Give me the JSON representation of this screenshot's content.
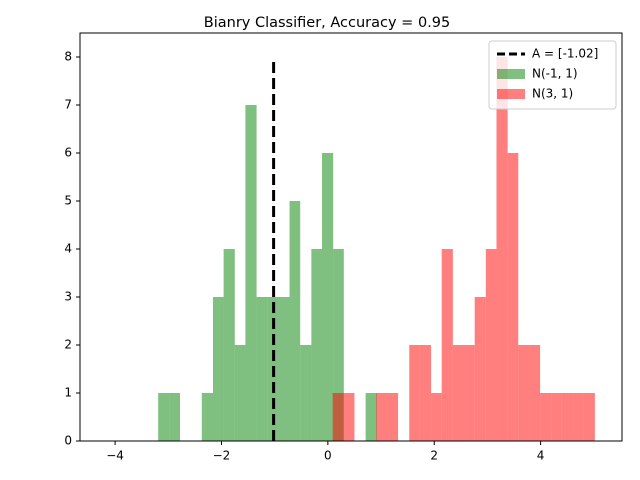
{
  "chart_data": {
    "type": "histogram",
    "title": "Bianry Classifier, Accuracy = 0.95",
    "series": [
      {
        "name": "N(-1, 1)",
        "color": "green",
        "bins": [
          -3.19,
          -2.98,
          -2.78,
          -2.57,
          -2.37,
          -2.16,
          -1.96,
          -1.75,
          -1.55,
          -1.34,
          -1.14,
          -0.93,
          -0.72,
          -0.52,
          -0.31,
          -0.11,
          0.1,
          0.3,
          0.51,
          0.71,
          0.92
        ],
        "values": [
          1,
          1,
          0,
          0,
          1,
          3,
          4,
          2,
          7,
          3,
          3,
          3,
          5,
          2,
          4,
          6,
          4,
          0,
          0,
          1
        ]
      },
      {
        "name": "N(3, 1)",
        "color": "red",
        "bins": [
          0.09,
          0.3,
          0.5,
          0.71,
          0.91,
          1.12,
          1.32,
          1.53,
          1.73,
          1.94,
          2.14,
          2.35,
          2.56,
          2.76,
          2.97,
          3.17,
          3.38,
          3.58,
          3.79,
          3.99,
          4.2,
          4.4,
          4.61,
          4.81,
          5.02
        ],
        "values": [
          1,
          1,
          0,
          0,
          1,
          1,
          0,
          2,
          2,
          1,
          4,
          2,
          2,
          3,
          4,
          8,
          6,
          2,
          2,
          1,
          1,
          1,
          1,
          1
        ]
      }
    ],
    "lines": [
      {
        "name": "A = [-1.02]",
        "color": "black",
        "x": [
          -1.02,
          -1.02
        ],
        "y": [
          0,
          8
        ]
      }
    ],
    "alpha": 0.5,
    "legend": "upper right",
    "xlim": [
      -4.66,
      5.53
    ],
    "ylim": [
      0,
      8.5
    ],
    "xticks": [
      {
        "value": -4,
        "label": "−4"
      },
      {
        "value": -2,
        "label": "−2"
      },
      0,
      2,
      4
    ],
    "yticks": [
      0,
      1,
      2,
      3,
      4,
      5,
      6,
      7,
      8
    ]
  }
}
